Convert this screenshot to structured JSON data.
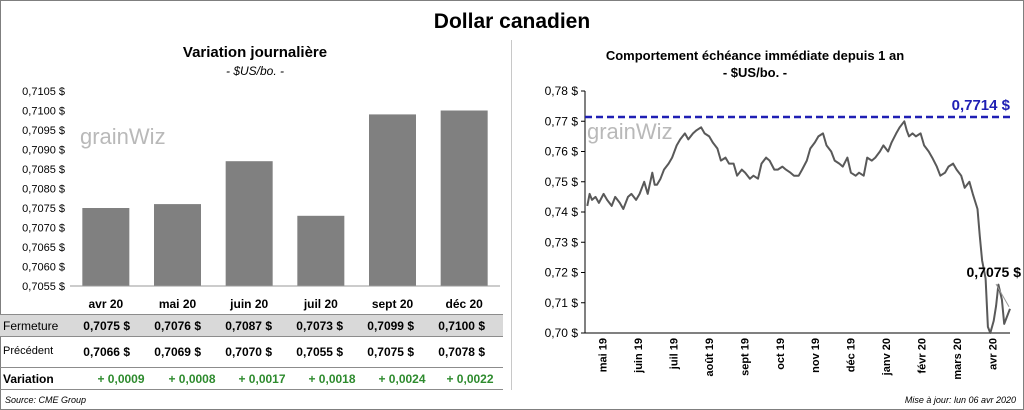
{
  "title": "Dollar canadien",
  "left": {
    "title": "Variation  journalière",
    "subtitle": "- $US/bo. -",
    "watermark": "grainWiz",
    "colors": {
      "bar": "#808080"
    }
  },
  "right": {
    "title": "Comportement échéance immédiate depuis 1 an",
    "subtitle": "- $US/bo. -",
    "watermark": "grainWiz",
    "ref_label": "0,7714 $",
    "last_label": "0,7075 $",
    "colors": {
      "line": "#595959",
      "ref": "#1f1fb4"
    }
  },
  "table": {
    "labels": {
      "close": "Fermeture",
      "prev": "Précédent",
      "var": "Variation"
    },
    "close": [
      "0,7075  $",
      "0,7076  $",
      "0,7087  $",
      "0,7073  $",
      "0,7099  $",
      "0,7100  $"
    ],
    "prev": [
      "0,7066  $",
      "0,7069  $",
      "0,7070  $",
      "0,7055  $",
      "0,7075  $",
      "0,7078  $"
    ],
    "var": [
      "+ 0,0009",
      "+ 0,0008",
      "+ 0,0017",
      "+ 0,0018",
      "+ 0,0024",
      "+ 0,0022"
    ]
  },
  "footer": {
    "source": "Source: CME Group",
    "updated": "Mise à jour: lun 06 avr 2020"
  },
  "chart_data": [
    {
      "type": "bar",
      "categories": [
        "avr 20",
        "mai 20",
        "juin 20",
        "juil 20",
        "sept 20",
        "déc 20"
      ],
      "values": [
        0.7075,
        0.7076,
        0.7087,
        0.7073,
        0.7099,
        0.71
      ],
      "ylim": [
        0.7055,
        0.7105
      ],
      "yticks": [
        0.7055,
        0.706,
        0.7065,
        0.707,
        0.7075,
        0.708,
        0.7085,
        0.709,
        0.7095,
        0.71,
        0.7105
      ],
      "ytick_labels": [
        "0,7055 $",
        "0,7060 $",
        "0,7065 $",
        "0,7070 $",
        "0,7075 $",
        "0,7080 $",
        "0,7085 $",
        "0,7090 $",
        "0,7095 $",
        "0,7100 $",
        "0,7105 $"
      ],
      "grid": false
    },
    {
      "type": "line",
      "ylim": [
        0.7,
        0.78
      ],
      "yticks": [
        0.7,
        0.71,
        0.72,
        0.73,
        0.74,
        0.75,
        0.76,
        0.77,
        0.78
      ],
      "ytick_labels": [
        "0,70 $",
        "0,71 $",
        "0,72 $",
        "0,73 $",
        "0,74 $",
        "0,75 $",
        "0,76 $",
        "0,77 $",
        "0,78 $"
      ],
      "x_labels": [
        "mai 19",
        "juin 19",
        "juil 19",
        "août 19",
        "sept 19",
        "oct 19",
        "nov 19",
        "déc 19",
        "janv 20",
        "févr 20",
        "mars 20",
        "avr 20"
      ],
      "x_range": [
        "2019-04-06",
        "2020-04-06"
      ],
      "reference_line": 0.7714,
      "last_value": 0.7075,
      "series": [
        {
          "points": [
            [
              "2019-04-08",
              0.742
            ],
            [
              "2019-04-10",
              0.746
            ],
            [
              "2019-04-12",
              0.744
            ],
            [
              "2019-04-15",
              0.745
            ],
            [
              "2019-04-18",
              0.743
            ],
            [
              "2019-04-22",
              0.746
            ],
            [
              "2019-04-25",
              0.744
            ],
            [
              "2019-04-29",
              0.742
            ],
            [
              "2019-05-02",
              0.745
            ],
            [
              "2019-05-06",
              0.743
            ],
            [
              "2019-05-09",
              0.741
            ],
            [
              "2019-05-13",
              0.745
            ],
            [
              "2019-05-16",
              0.746
            ],
            [
              "2019-05-20",
              0.744
            ],
            [
              "2019-05-23",
              0.746
            ],
            [
              "2019-05-27",
              0.75
            ],
            [
              "2019-05-30",
              0.746
            ],
            [
              "2019-06-03",
              0.753
            ],
            [
              "2019-06-05",
              0.749
            ],
            [
              "2019-06-07",
              0.749
            ],
            [
              "2019-06-10",
              0.751
            ],
            [
              "2019-06-13",
              0.754
            ],
            [
              "2019-06-17",
              0.756
            ],
            [
              "2019-06-20",
              0.758
            ],
            [
              "2019-06-24",
              0.762
            ],
            [
              "2019-06-27",
              0.764
            ],
            [
              "2019-07-01",
              0.766
            ],
            [
              "2019-07-04",
              0.764
            ],
            [
              "2019-07-08",
              0.766
            ],
            [
              "2019-07-11",
              0.767
            ],
            [
              "2019-07-15",
              0.768
            ],
            [
              "2019-07-18",
              0.766
            ],
            [
              "2019-07-22",
              0.765
            ],
            [
              "2019-07-25",
              0.763
            ],
            [
              "2019-07-29",
              0.761
            ],
            [
              "2019-08-01",
              0.757
            ],
            [
              "2019-08-05",
              0.758
            ],
            [
              "2019-08-08",
              0.756
            ],
            [
              "2019-08-12",
              0.756
            ],
            [
              "2019-08-15",
              0.752
            ],
            [
              "2019-08-19",
              0.754
            ],
            [
              "2019-08-22",
              0.753
            ],
            [
              "2019-08-26",
              0.751
            ],
            [
              "2019-08-29",
              0.752
            ],
            [
              "2019-09-02",
              0.751
            ],
            [
              "2019-09-05",
              0.756
            ],
            [
              "2019-09-09",
              0.758
            ],
            [
              "2019-09-12",
              0.757
            ],
            [
              "2019-09-16",
              0.754
            ],
            [
              "2019-09-19",
              0.754
            ],
            [
              "2019-09-23",
              0.755
            ],
            [
              "2019-09-26",
              0.754
            ],
            [
              "2019-09-30",
              0.753
            ],
            [
              "2019-10-03",
              0.752
            ],
            [
              "2019-10-07",
              0.752
            ],
            [
              "2019-10-10",
              0.754
            ],
            [
              "2019-10-14",
              0.757
            ],
            [
              "2019-10-17",
              0.761
            ],
            [
              "2019-10-21",
              0.763
            ],
            [
              "2019-10-24",
              0.765
            ],
            [
              "2019-10-28",
              0.766
            ],
            [
              "2019-10-31",
              0.762
            ],
            [
              "2019-11-04",
              0.76
            ],
            [
              "2019-11-07",
              0.757
            ],
            [
              "2019-11-11",
              0.756
            ],
            [
              "2019-11-14",
              0.755
            ],
            [
              "2019-11-18",
              0.758
            ],
            [
              "2019-11-21",
              0.753
            ],
            [
              "2019-11-25",
              0.752
            ],
            [
              "2019-11-28",
              0.753
            ],
            [
              "2019-12-02",
              0.752
            ],
            [
              "2019-12-05",
              0.758
            ],
            [
              "2019-12-09",
              0.757
            ],
            [
              "2019-12-12",
              0.758
            ],
            [
              "2019-12-16",
              0.76
            ],
            [
              "2019-12-19",
              0.762
            ],
            [
              "2019-12-23",
              0.76
            ],
            [
              "2019-12-26",
              0.763
            ],
            [
              "2019-12-30",
              0.766
            ],
            [
              "2020-01-02",
              0.768
            ],
            [
              "2020-01-06",
              0.77
            ],
            [
              "2020-01-08",
              0.767
            ],
            [
              "2020-01-10",
              0.765
            ],
            [
              "2020-01-13",
              0.766
            ],
            [
              "2020-01-16",
              0.765
            ],
            [
              "2020-01-20",
              0.766
            ],
            [
              "2020-01-23",
              0.762
            ],
            [
              "2020-01-27",
              0.76
            ],
            [
              "2020-01-30",
              0.758
            ],
            [
              "2020-02-03",
              0.755
            ],
            [
              "2020-02-06",
              0.752
            ],
            [
              "2020-02-10",
              0.753
            ],
            [
              "2020-02-13",
              0.755
            ],
            [
              "2020-02-17",
              0.756
            ],
            [
              "2020-02-20",
              0.754
            ],
            [
              "2020-02-24",
              0.752
            ],
            [
              "2020-02-27",
              0.748
            ],
            [
              "2020-03-02",
              0.75
            ],
            [
              "2020-03-05",
              0.746
            ],
            [
              "2020-03-09",
              0.741
            ],
            [
              "2020-03-11",
              0.732
            ],
            [
              "2020-03-13",
              0.724
            ],
            [
              "2020-03-16",
              0.718
            ],
            [
              "2020-03-18",
              0.702
            ],
            [
              "2020-03-20",
              0.7
            ],
            [
              "2020-03-23",
              0.704
            ],
            [
              "2020-03-25",
              0.709
            ],
            [
              "2020-03-27",
              0.716
            ],
            [
              "2020-03-30",
              0.711
            ],
            [
              "2020-04-01",
              0.703
            ],
            [
              "2020-04-03",
              0.705
            ],
            [
              "2020-04-06",
              0.708
            ]
          ]
        }
      ],
      "grid": false
    }
  ]
}
